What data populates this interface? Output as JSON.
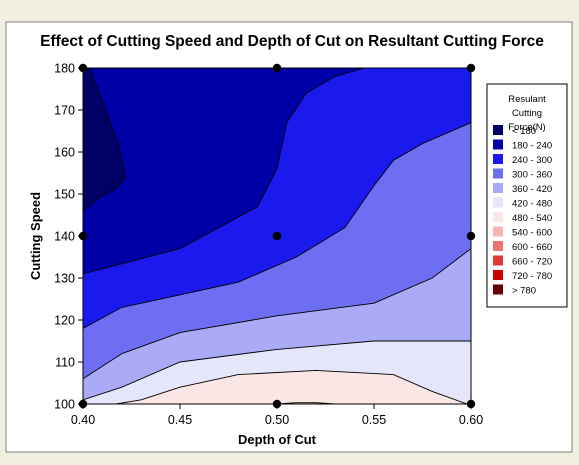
{
  "chart_data": {
    "type": "contour",
    "title": "Effect of Cutting Speed and Depth of Cut on Resultant Cutting Force",
    "xlabel": "Depth of Cut",
    "ylabel": "Cutting Speed",
    "xlim": [
      0.4,
      0.6
    ],
    "ylim": [
      100,
      180
    ],
    "x_ticks": [
      "0.40",
      "0.45",
      "0.50",
      "0.55",
      "0.60"
    ],
    "y_ticks": [
      "100",
      "110",
      "120",
      "130",
      "140",
      "150",
      "160",
      "170",
      "180"
    ],
    "design_points": [
      {
        "x": 0.4,
        "y": 100
      },
      {
        "x": 0.5,
        "y": 100
      },
      {
        "x": 0.6,
        "y": 100
      },
      {
        "x": 0.4,
        "y": 140
      },
      {
        "x": 0.5,
        "y": 140
      },
      {
        "x": 0.6,
        "y": 140
      },
      {
        "x": 0.4,
        "y": 180
      },
      {
        "x": 0.5,
        "y": 180
      },
      {
        "x": 0.6,
        "y": 180
      }
    ],
    "contour_boundaries": [
      {
        "level": 180,
        "points": [
          [
            0.4,
            146
          ],
          [
            0.408,
            149
          ],
          [
            0.416,
            151
          ],
          [
            0.422,
            154
          ],
          [
            0.418,
            162
          ],
          [
            0.41,
            172
          ],
          [
            0.405,
            178
          ],
          [
            0.404,
            180
          ]
        ]
      },
      {
        "level": 240,
        "points": [
          [
            0.4,
            131
          ],
          [
            0.425,
            134
          ],
          [
            0.45,
            137
          ],
          [
            0.47,
            142
          ],
          [
            0.49,
            147
          ],
          [
            0.5,
            156
          ],
          [
            0.505,
            167
          ],
          [
            0.515,
            174
          ],
          [
            0.53,
            178
          ],
          [
            0.545,
            180
          ]
        ]
      },
      {
        "level": 300,
        "points": [
          [
            0.4,
            118
          ],
          [
            0.42,
            123
          ],
          [
            0.45,
            126
          ],
          [
            0.48,
            129
          ],
          [
            0.51,
            135
          ],
          [
            0.535,
            142
          ],
          [
            0.55,
            152
          ],
          [
            0.56,
            158
          ],
          [
            0.575,
            162
          ],
          [
            0.6,
            167
          ]
        ]
      },
      {
        "level": 360,
        "points": [
          [
            0.4,
            106
          ],
          [
            0.42,
            112
          ],
          [
            0.45,
            117
          ],
          [
            0.5,
            121
          ],
          [
            0.55,
            124
          ],
          [
            0.58,
            130
          ],
          [
            0.6,
            137
          ]
        ]
      },
      {
        "level": 420,
        "points": [
          [
            0.4,
            101
          ],
          [
            0.42,
            104
          ],
          [
            0.45,
            110
          ],
          [
            0.5,
            113
          ],
          [
            0.55,
            115
          ],
          [
            0.6,
            115
          ]
        ]
      },
      {
        "level": 480,
        "points": [
          [
            0.417,
            100
          ],
          [
            0.43,
            101
          ],
          [
            0.45,
            104
          ],
          [
            0.48,
            107
          ],
          [
            0.52,
            108
          ],
          [
            0.56,
            107
          ],
          [
            0.58,
            103
          ],
          [
            0.598,
            100
          ]
        ]
      },
      {
        "level": 540,
        "points": [
          [
            0.5,
            100
          ],
          [
            0.51,
            100.3
          ],
          [
            0.52,
            100.3
          ],
          [
            0.53,
            100
          ]
        ]
      }
    ],
    "legend": {
      "title_lines": [
        "Resulant",
        "Cutting",
        "Force(N)"
      ],
      "position": "right",
      "entries": [
        {
          "label": "<   180",
          "color": "#000066"
        },
        {
          "label": "180  -   240",
          "color": "#0000a8"
        },
        {
          "label": "240  -   300",
          "color": "#1a1aef"
        },
        {
          "label": "300  -   360",
          "color": "#6e6ef3"
        },
        {
          "label": "360  -   420",
          "color": "#aaaaf6"
        },
        {
          "label": "420  -   480",
          "color": "#e6e6fa"
        },
        {
          "label": "480  -   540",
          "color": "#fbe6e6"
        },
        {
          "label": "540  -   600",
          "color": "#f6b4b4"
        },
        {
          "label": "600  -   660",
          "color": "#ee7474"
        },
        {
          "label": "660  -   720",
          "color": "#e23838"
        },
        {
          "label": "720  -   780",
          "color": "#cc0000"
        },
        {
          "label": ">   780",
          "color": "#660000"
        }
      ]
    }
  }
}
